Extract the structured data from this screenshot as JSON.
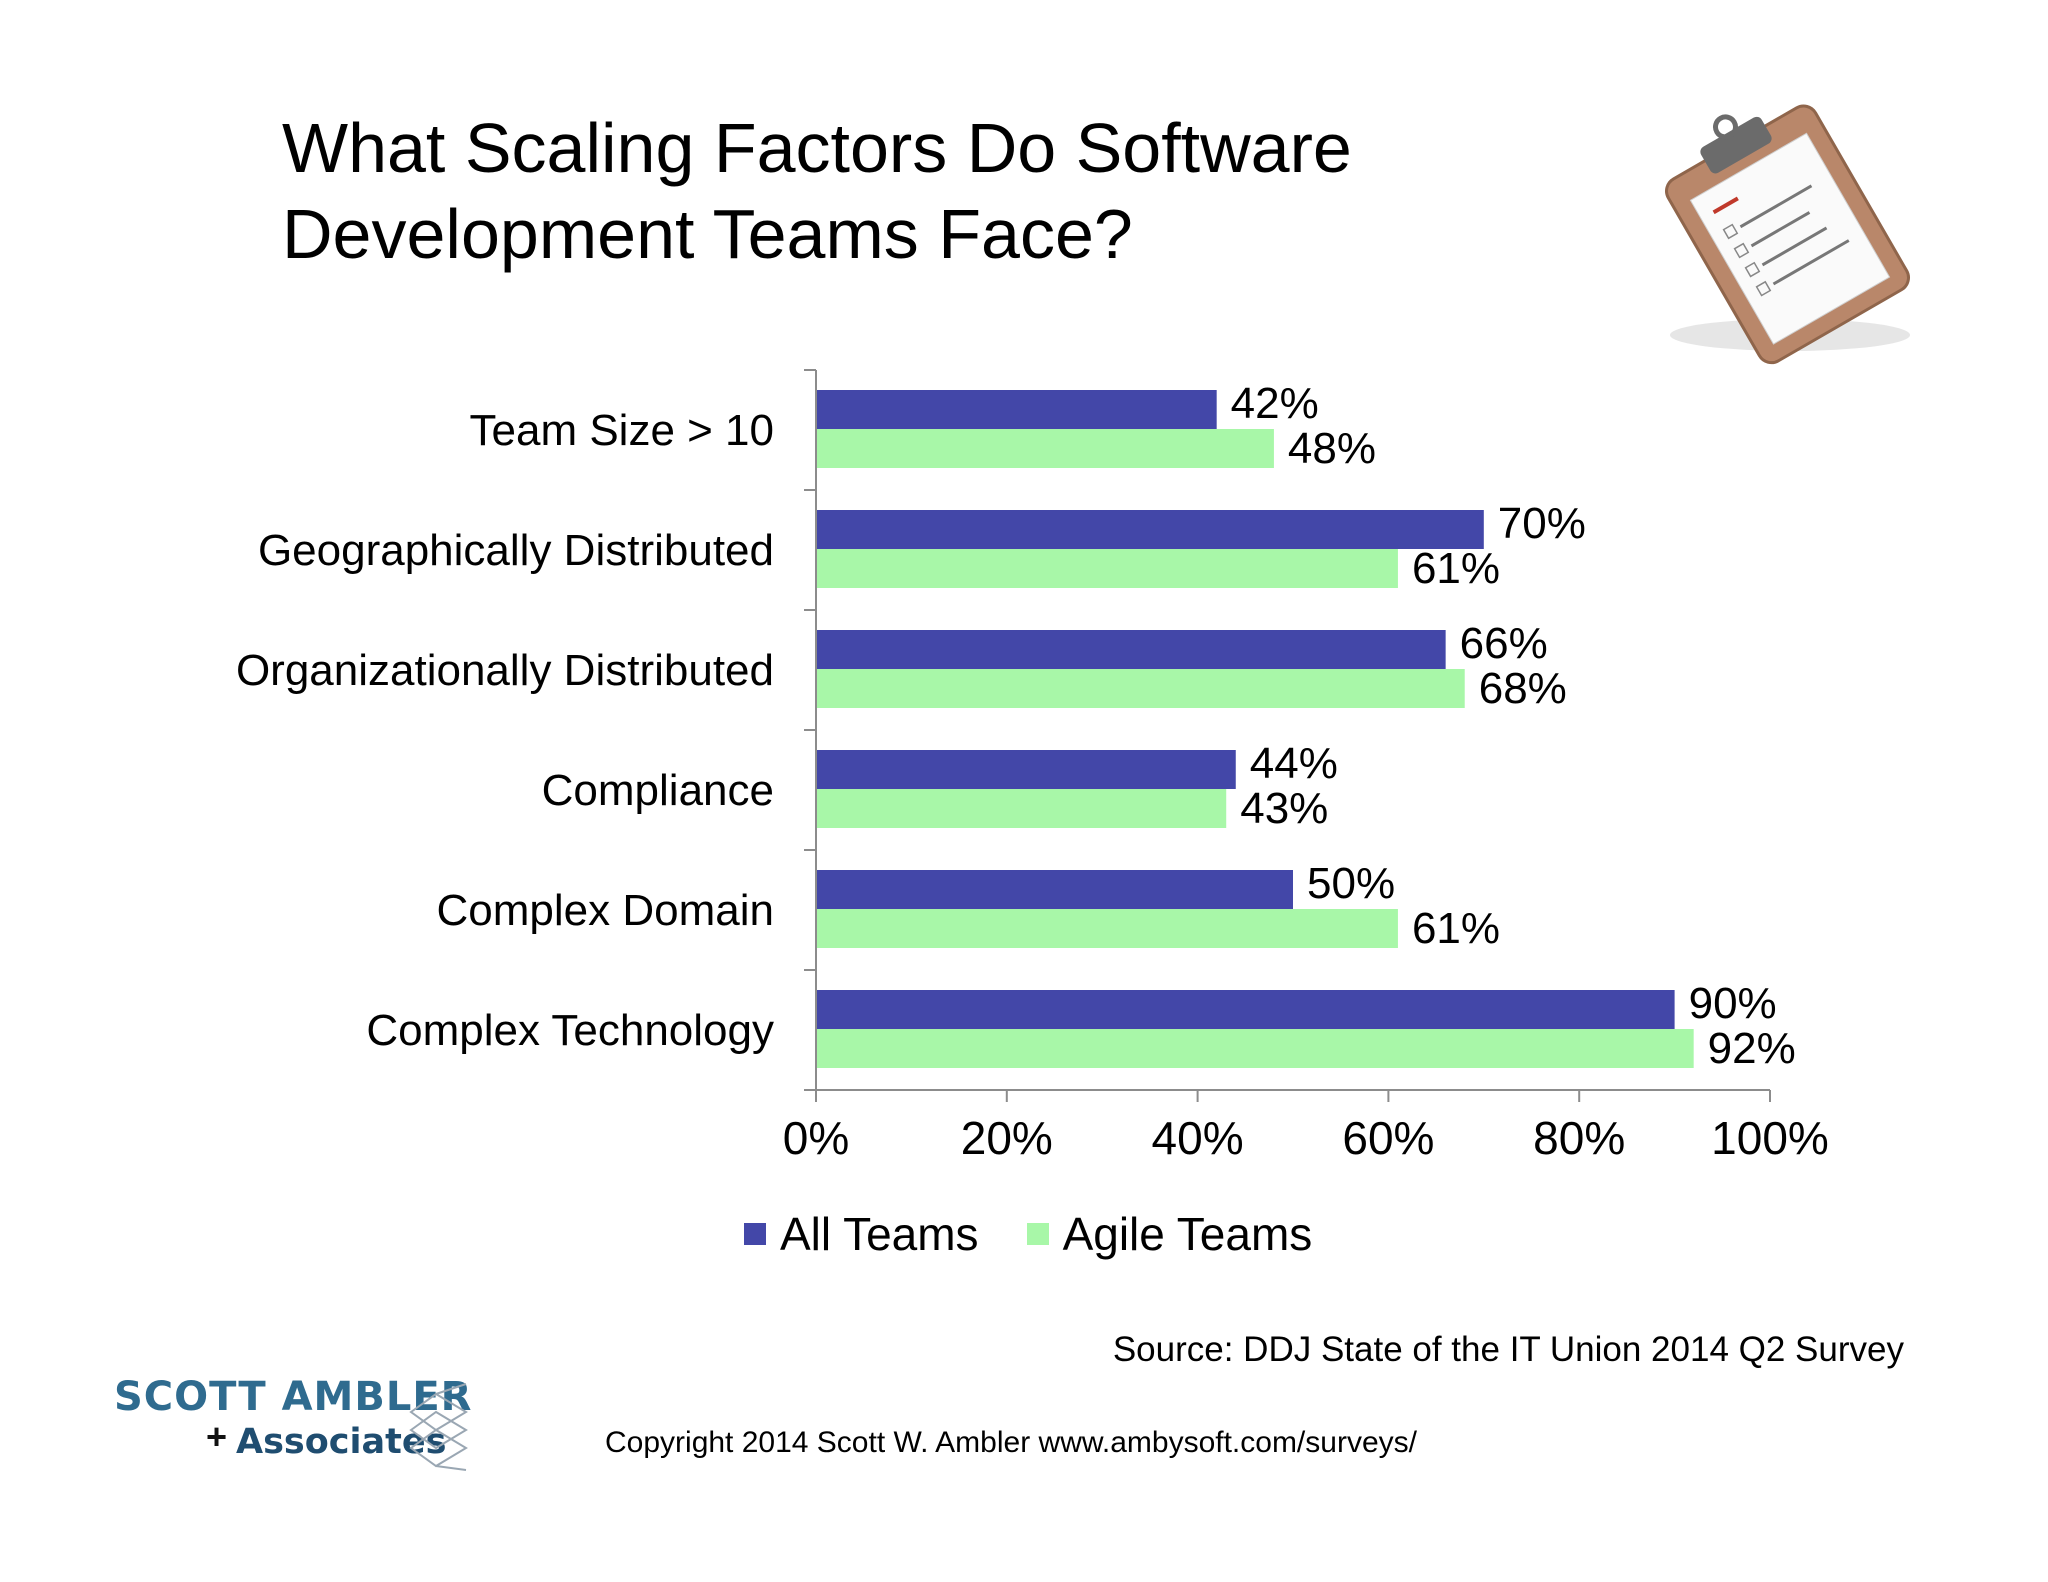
{
  "title": {
    "line1": "What Scaling Factors Do Software",
    "line2": "Development Teams Face?"
  },
  "chart_data": {
    "type": "bar",
    "orientation": "horizontal",
    "categories": [
      "Team Size > 10",
      "Geographically Distributed",
      "Organizationally Distributed",
      "Compliance",
      "Complex Domain",
      "Complex Technology"
    ],
    "series": [
      {
        "name": "All Teams",
        "values": [
          42,
          70,
          66,
          44,
          50,
          90
        ],
        "labels": [
          "42%",
          "70%",
          "66%",
          "44%",
          "50%",
          "90%"
        ],
        "color": "#4347a8"
      },
      {
        "name": "Agile Teams",
        "values": [
          48,
          61,
          68,
          43,
          61,
          92
        ],
        "labels": [
          "48%",
          "61%",
          "68%",
          "43%",
          "61%",
          "92%"
        ],
        "color": "#a8f7a8"
      }
    ],
    "xlim": [
      0,
      100
    ],
    "xticks": [
      "0%",
      "20%",
      "40%",
      "60%",
      "80%",
      "100%"
    ],
    "grid": false,
    "legend_position": "bottom"
  },
  "legend": {
    "all_teams": "All Teams",
    "agile_teams": "Agile Teams",
    "all_color": "#4347a8",
    "agile_color": "#a8f7a8"
  },
  "source": "Source: DDJ State of the IT Union 2014 Q2 Survey",
  "copyright": "Copyright 2014 Scott W. Ambler www.ambysoft.com/surveys/",
  "logo": {
    "line1": "SCOTT AMBLER",
    "plus": "+",
    "line2": "Associates"
  },
  "icons": {
    "clipboard": "clipboard-checklist-icon",
    "logo_mark": "diamond-lattice-logo-icon"
  }
}
